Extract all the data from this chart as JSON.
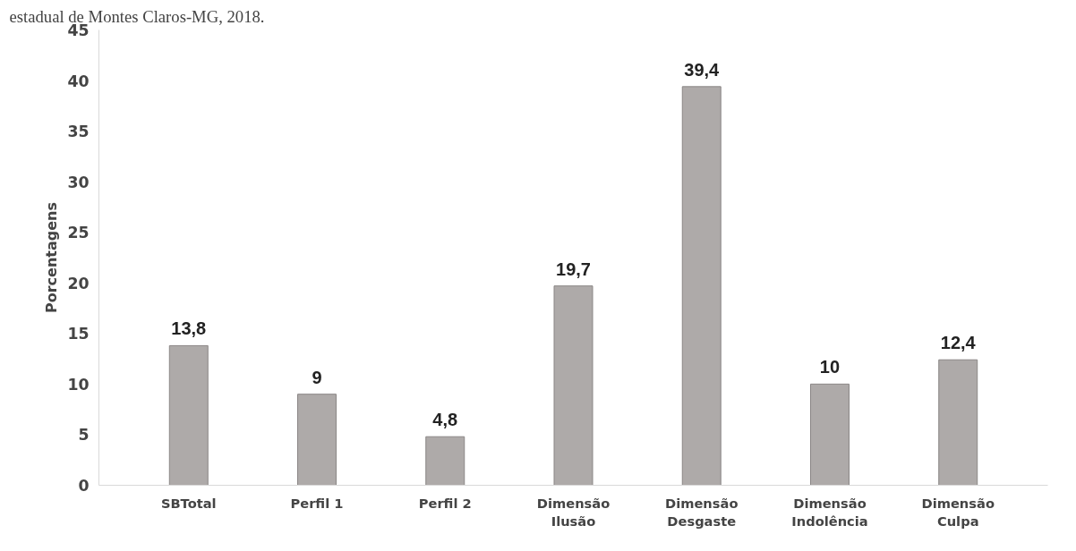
{
  "chart_data": {
    "type": "bar",
    "ylabel": "Porcentagens",
    "categories": [
      "SBTotal",
      "Perfil 1",
      "Perfil 2",
      "Dimensão Ilusão",
      "Dimensão Desgaste",
      "Dimensão Indolência",
      "Dimensão Culpa"
    ],
    "values": [
      13.8,
      9,
      4.8,
      19.7,
      39.4,
      10,
      12.4
    ],
    "value_labels": [
      "13,8",
      "9",
      "4,8",
      "19,7",
      "39,4",
      "10",
      "12,4"
    ],
    "color": "#aeaaa9",
    "ylim": [
      0,
      45
    ],
    "yticks": [
      0,
      5,
      10,
      15,
      20,
      25,
      30,
      35,
      40,
      45
    ],
    "grid": false,
    "annotations": [
      "estadual de Montes Claros-MG, 2018."
    ]
  }
}
